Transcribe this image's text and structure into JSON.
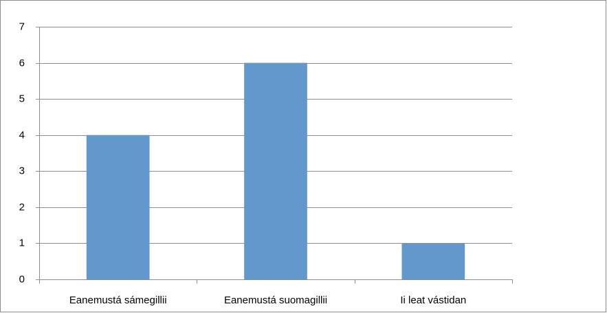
{
  "chart_data": {
    "type": "bar",
    "categories": [
      "Eanemustá sámegillii",
      "Eanemustá suomagillii",
      "Ii leat vástidan"
    ],
    "values": [
      4,
      6,
      1
    ],
    "color": "#6398cc",
    "ylim": [
      0,
      7
    ],
    "yticks": [
      0,
      1,
      2,
      3,
      4,
      5,
      6,
      7
    ],
    "grid": true
  }
}
